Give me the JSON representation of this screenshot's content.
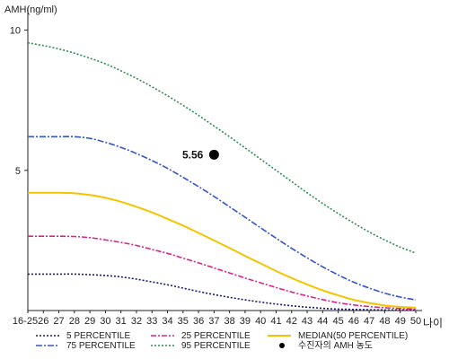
{
  "chart_data": {
    "type": "line",
    "ylabel": "AMH(ng/ml)",
    "xlabel": "나이",
    "categories": [
      "16-25",
      "26",
      "27",
      "28",
      "29",
      "30",
      "31",
      "32",
      "33",
      "34",
      "35",
      "36",
      "37",
      "38",
      "39",
      "40",
      "41",
      "42",
      "43",
      "44",
      "45",
      "46",
      "47",
      "48",
      "49",
      "50"
    ],
    "ylim": [
      0,
      10.5
    ],
    "y_ticks": [
      5,
      10
    ],
    "y_tick_labels": [
      "5",
      "10"
    ],
    "series": [
      {
        "name": "5 PERCENTILE",
        "color": "#1a1a6e",
        "dash": "2,2",
        "values": [
          1.3,
          1.3,
          1.3,
          1.3,
          1.28,
          1.25,
          1.2,
          1.12,
          1.02,
          0.92,
          0.8,
          0.68,
          0.57,
          0.47,
          0.38,
          0.3,
          0.23,
          0.17,
          0.12,
          0.08,
          0.05,
          0.04,
          0.03,
          0.02,
          0.02,
          0.02
        ]
      },
      {
        "name": "25 PERCENTILE",
        "color": "#e0208a",
        "dash": "6,2,2,2",
        "values": [
          2.65,
          2.65,
          2.65,
          2.64,
          2.6,
          2.52,
          2.43,
          2.32,
          2.18,
          2.04,
          1.87,
          1.7,
          1.52,
          1.34,
          1.16,
          0.99,
          0.82,
          0.66,
          0.52,
          0.39,
          0.28,
          0.2,
          0.14,
          0.1,
          0.07,
          0.05
        ]
      },
      {
        "name": "MEDIAN(50 PERCENTILE)",
        "color": "#f5c400",
        "dash": "",
        "values": [
          4.2,
          4.2,
          4.2,
          4.18,
          4.12,
          4.02,
          3.88,
          3.7,
          3.5,
          3.27,
          3.03,
          2.77,
          2.5,
          2.23,
          1.95,
          1.68,
          1.41,
          1.16,
          0.93,
          0.72,
          0.54,
          0.38,
          0.27,
          0.18,
          0.13,
          0.1
        ]
      },
      {
        "name": "75 PERCENTILE",
        "color": "#3355cc",
        "dash": "7,2,2,2",
        "values": [
          6.2,
          6.2,
          6.2,
          6.2,
          6.14,
          6.0,
          5.82,
          5.6,
          5.35,
          5.07,
          4.75,
          4.42,
          4.07,
          3.7,
          3.33,
          2.95,
          2.58,
          2.22,
          1.88,
          1.56,
          1.27,
          1.01,
          0.8,
          0.62,
          0.48,
          0.38
        ]
      },
      {
        "name": "95 PERCENTILE",
        "color": "#2e8b57",
        "dash": "2,2",
        "values": [
          9.55,
          9.45,
          9.33,
          9.18,
          9.0,
          8.8,
          8.55,
          8.28,
          7.98,
          7.66,
          7.32,
          6.96,
          6.58,
          6.2,
          5.8,
          5.4,
          5.0,
          4.6,
          4.2,
          3.82,
          3.46,
          3.12,
          2.8,
          2.52,
          2.26,
          2.05
        ]
      }
    ],
    "marker": {
      "name": "수진자의 AMH 농도",
      "label": "5.56",
      "x": "37",
      "y": 5.56,
      "color": "#000000"
    },
    "legend": {
      "placement": "bottom",
      "marker_label": "수진자의 AMH 농도"
    },
    "grid": false
  }
}
